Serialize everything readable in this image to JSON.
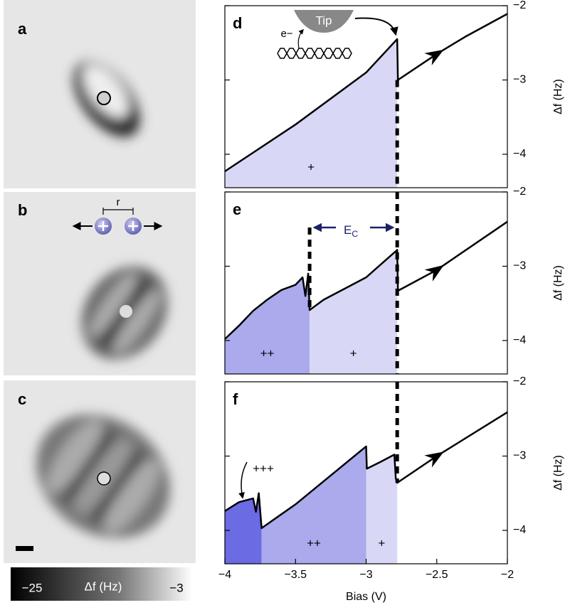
{
  "panels": [
    {
      "label": "a"
    },
    {
      "label": "b",
      "annotation": "r"
    },
    {
      "label": "c"
    }
  ],
  "colorbar": {
    "min_label": "−25",
    "title": "Δf (Hz)",
    "max_label": "−3"
  },
  "chart_data": [
    {
      "type": "line",
      "panel": "d",
      "x": [
        -4,
        -3.5,
        -3,
        -2.78,
        -2.775,
        -2.5,
        -2.3,
        -2
      ],
      "series": [
        {
          "color": "#000000",
          "values": [
            -4.23,
            -3.6,
            -2.9,
            -2.45,
            -3.0,
            -2.65,
            -2.42,
            -2.11
          ]
        }
      ],
      "xlim": [
        -4,
        -2
      ],
      "ylim": [
        -4.45,
        -2
      ],
      "yticks": [
        {
          "value": -2,
          "label": "−2"
        },
        {
          "value": -3,
          "label": "−3"
        },
        {
          "value": -4,
          "label": "−4"
        }
      ],
      "y_label": "Δf (Hz)",
      "regions": [
        {
          "label": "+",
          "x": [
            -4,
            -2.78
          ],
          "color": "#d8d8f6"
        }
      ],
      "dashes": [
        -2.78
      ],
      "annotations": [
        {
          "text": "Tip"
        },
        {
          "text": "e−"
        }
      ]
    },
    {
      "type": "line",
      "panel": "e",
      "x": [
        -4,
        -3.9,
        -3.8,
        -3.7,
        -3.6,
        -3.5,
        -3.45,
        -3.43,
        -3.41,
        -3.4,
        -3.3,
        -3.0,
        -2.78,
        -2.775,
        -2.5,
        -2
      ],
      "series": [
        {
          "color": "#000000",
          "values": [
            -3.98,
            -3.8,
            -3.6,
            -3.45,
            -3.32,
            -3.25,
            -3.15,
            -3.4,
            -3.1,
            -3.59,
            -3.45,
            -3.15,
            -2.78,
            -3.33,
            -3.05,
            -2.4
          ]
        }
      ],
      "xlim": [
        -4,
        -2
      ],
      "ylim": [
        -4.45,
        -2
      ],
      "yticks": [
        {
          "value": -2,
          "label": "−2"
        },
        {
          "value": -3,
          "label": "−3"
        },
        {
          "value": -4,
          "label": "−4"
        }
      ],
      "y_label": "Δf (Hz)",
      "regions": [
        {
          "label": "++",
          "x": [
            -4,
            -3.4
          ],
          "color": "#aaaaec"
        },
        {
          "label": "+",
          "x": [
            -3.4,
            -2.78
          ],
          "color": "#d8d8f6"
        }
      ],
      "dashes": [
        -3.4,
        -2.78
      ],
      "annotations": [
        {
          "text": "E",
          "sub": "C"
        }
      ]
    },
    {
      "type": "line",
      "panel": "f",
      "x": [
        -4,
        -3.9,
        -3.8,
        -3.78,
        -3.76,
        -3.74,
        -3.5,
        -3.0,
        -2.995,
        -2.9,
        -2.8,
        -2.79,
        -2.78,
        -2.5,
        -2
      ],
      "series": [
        {
          "color": "#000000",
          "values": [
            -3.74,
            -3.62,
            -3.57,
            -3.75,
            -3.5,
            -3.97,
            -3.65,
            -2.87,
            -3.17,
            -3.08,
            -2.98,
            -3.3,
            -3.36,
            -3.0,
            -2.41
          ]
        }
      ],
      "xlim": [
        -4,
        -2
      ],
      "ylim": [
        -4.45,
        -2
      ],
      "xticks": [
        {
          "value": -4,
          "label": "−4"
        },
        {
          "value": -3.5,
          "label": "−3.5"
        },
        {
          "value": -3,
          "label": "−3"
        },
        {
          "value": -2.5,
          "label": "−2.5"
        },
        {
          "value": -2,
          "label": "−2"
        }
      ],
      "yticks": [
        {
          "value": -2,
          "label": "−2"
        },
        {
          "value": -3,
          "label": "−3"
        },
        {
          "value": -4,
          "label": "−4"
        }
      ],
      "x_label": "Bias (V)",
      "y_label": "Δf (Hz)",
      "regions": [
        {
          "x": [
            -4,
            -3.74
          ],
          "color": "#6b6be4"
        },
        {
          "label": "++",
          "x": [
            -3.74,
            -3.0
          ],
          "color": "#aaaaec"
        },
        {
          "label": "+",
          "x": [
            -3.0,
            -2.78
          ],
          "color": "#d8d8f6"
        }
      ],
      "dashes": [
        -2.78
      ],
      "annotations": [
        {
          "text": "+++"
        }
      ]
    }
  ]
}
